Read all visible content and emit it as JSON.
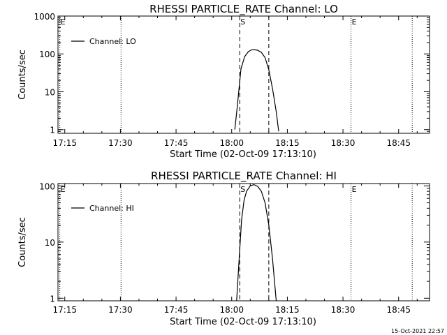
{
  "timestamp": "15-Oct-2021 22:57",
  "chart_data": [
    {
      "type": "line",
      "title": "RHESSI PARTICLE_RATE Channel: LO",
      "xlabel": "Start Time (02-Oct-09 17:13:10)",
      "ylabel": "Counts/sec",
      "yscale": "log",
      "xlim": [
        "17:13:10",
        "18:53:20"
      ],
      "ylim": [
        0.8,
        1000
      ],
      "x_ticks": [
        "17:15",
        "17:30",
        "17:45",
        "18:00",
        "18:15",
        "18:30",
        "18:45"
      ],
      "y_ticks": [
        "1",
        "10",
        "100",
        "1000"
      ],
      "legend": {
        "position": "top-left",
        "entries": [
          "Channel: LO"
        ]
      },
      "series": [
        {
          "name": "Channel: LO",
          "x": [
            "18:00:50",
            "18:01:30",
            "18:02:30",
            "18:03:30",
            "18:04:30",
            "18:05:20",
            "18:06:00",
            "18:07:00",
            "18:08:00",
            "18:09:00",
            "18:10:00",
            "18:11:00",
            "18:12:00",
            "18:12:40"
          ],
          "y": [
            1,
            4,
            40,
            85,
            115,
            128,
            130,
            125,
            110,
            80,
            38,
            12,
            3,
            0.9
          ]
        }
      ],
      "vlines_dashed": [
        {
          "time": "18:02:10",
          "label": "S"
        },
        {
          "time": "18:10:00",
          "label": ""
        }
      ],
      "vlines_dotted": [
        {
          "time": "17:13:40",
          "label": "E"
        },
        {
          "time": "17:30:10",
          "label": ""
        },
        {
          "time": "18:32:10",
          "label": "E"
        },
        {
          "time": "18:48:40",
          "label": ""
        }
      ]
    },
    {
      "type": "line",
      "title": "RHESSI PARTICLE_RATE Channel: HI",
      "xlabel": "Start Time (02-Oct-09 17:13:10)",
      "ylabel": "Counts/sec",
      "yscale": "log",
      "xlim": [
        "17:13:10",
        "18:53:20"
      ],
      "ylim": [
        0.9,
        110
      ],
      "x_ticks": [
        "17:15",
        "17:30",
        "17:45",
        "18:00",
        "18:15",
        "18:30",
        "18:45"
      ],
      "y_ticks": [
        "1",
        "10",
        "100"
      ],
      "legend": {
        "position": "top-left",
        "entries": [
          "Channel: HI"
        ]
      },
      "series": [
        {
          "name": "Channel: HI",
          "x": [
            "18:01:20",
            "18:02:00",
            "18:02:40",
            "18:03:20",
            "18:04:00",
            "18:05:00",
            "18:06:00",
            "18:07:00",
            "18:08:00",
            "18:09:00",
            "18:10:00",
            "18:11:00",
            "18:12:00"
          ],
          "y": [
            0.9,
            5,
            25,
            55,
            80,
            100,
            105,
            98,
            80,
            50,
            20,
            5,
            0.9
          ]
        }
      ],
      "vlines_dashed": [
        {
          "time": "18:02:10",
          "label": "S"
        },
        {
          "time": "18:10:00",
          "label": ""
        }
      ],
      "vlines_dotted": [
        {
          "time": "17:13:40",
          "label": "E"
        },
        {
          "time": "17:30:10",
          "label": ""
        },
        {
          "time": "18:32:10",
          "label": "E"
        },
        {
          "time": "18:48:40",
          "label": ""
        }
      ]
    }
  ]
}
